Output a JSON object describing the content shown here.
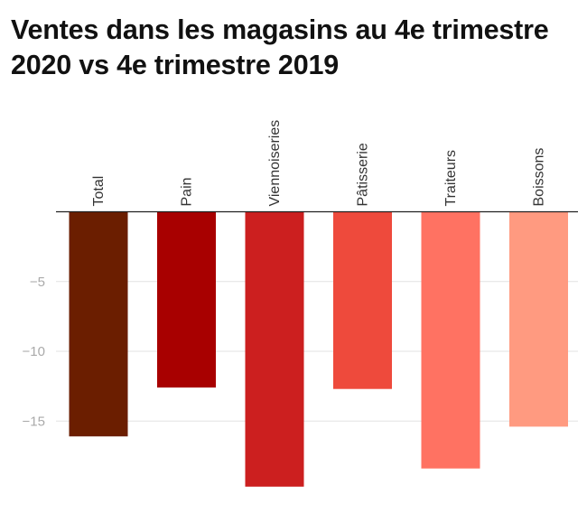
{
  "chart_data": {
    "type": "bar",
    "title": "Ventes dans les magasins au 4e trimestre 2020 vs 4e trimestre 2019",
    "xlabel": "",
    "ylabel": "",
    "categories": [
      "Total",
      "Pain",
      "Viennoiseries",
      "Pâtisserie",
      "Traiteurs",
      "Boissons"
    ],
    "values": [
      -16.1,
      -12.6,
      -19.7,
      -12.7,
      -18.4,
      -15.4
    ],
    "colors": [
      "#6b1e00",
      "#a80000",
      "#cc1f1f",
      "#ee4a3c",
      "#ff7262",
      "#ff9a80"
    ],
    "yticks": [
      -5,
      -10,
      -15
    ],
    "ytick_labels": [
      "−5",
      "−10",
      "−15"
    ],
    "ylim": [
      -20,
      0
    ],
    "grid": true,
    "legend": "none",
    "category_label_position": "top, rotated vertical"
  }
}
